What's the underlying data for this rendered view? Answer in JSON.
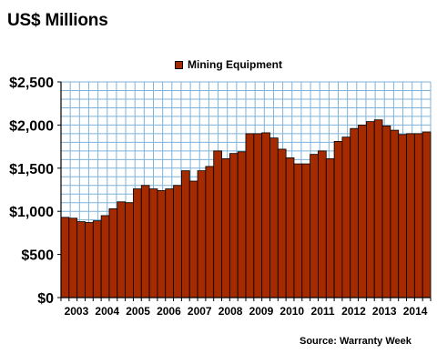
{
  "title": "US$ Millions",
  "source": "Source: Warranty Week",
  "colors": {
    "bar": "#a52a00",
    "bar_edge": "#000000",
    "grid": "#7fb2d9",
    "axis": "#000000"
  },
  "chart_data": {
    "type": "bar",
    "title": "US$ Millions",
    "xlabel": "",
    "ylabel": "",
    "grid": true,
    "legend_position": "top-center",
    "ylim": [
      0,
      2500
    ],
    "y_ticks": [
      0,
      500,
      1000,
      1500,
      2000,
      2500
    ],
    "y_tick_labels": [
      "$0",
      "$500",
      "$1,000",
      "$1,500",
      "$2,000",
      "$2,500"
    ],
    "x_tick_labels": [
      "2003",
      "2004",
      "2005",
      "2006",
      "2007",
      "2008",
      "2009",
      "2010",
      "2011",
      "2012",
      "2013",
      "2014"
    ],
    "series": [
      {
        "name": "Mining Equipment",
        "values": [
          930,
          920,
          880,
          870,
          890,
          950,
          1030,
          1110,
          1100,
          1260,
          1300,
          1260,
          1240,
          1260,
          1300,
          1470,
          1350,
          1470,
          1520,
          1700,
          1610,
          1670,
          1690,
          1900,
          1900,
          1910,
          1850,
          1720,
          1620,
          1550,
          1550,
          1660,
          1700,
          1610,
          1810,
          1860,
          1960,
          2000,
          2040,
          2060,
          1990,
          1940,
          1890,
          1900,
          1900,
          1920
        ]
      }
    ]
  }
}
